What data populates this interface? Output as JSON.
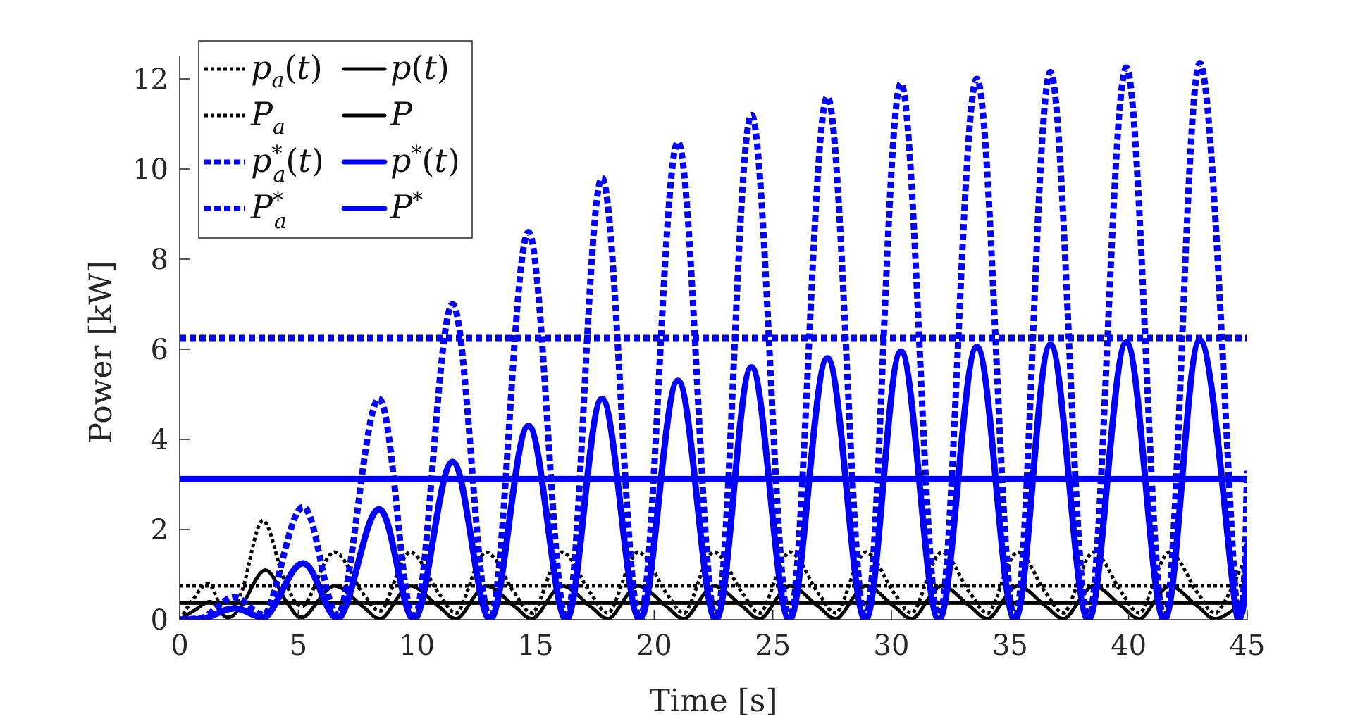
{
  "chart_data": {
    "type": "line",
    "title": "",
    "xlabel": "Time [s]",
    "ylabel": "Power [kW]",
    "xlim": [
      0,
      45
    ],
    "ylim": [
      0,
      12.5
    ],
    "xticks": [
      0,
      5,
      10,
      15,
      20,
      25,
      30,
      35,
      40,
      45
    ],
    "yticks": [
      0,
      2,
      4,
      6,
      8,
      10,
      12
    ],
    "grid": false,
    "legend_position": "top-left",
    "colors": {
      "black": "#000000",
      "blue": "#0000ff"
    },
    "legend": [
      {
        "id": "pa_t",
        "label": "pa(t)",
        "style": "dotted",
        "color": "#000000"
      },
      {
        "id": "p_t",
        "label": "p(t)",
        "style": "solid",
        "color": "#000000"
      },
      {
        "id": "Pa",
        "label": "Pa",
        "style": "dotted",
        "color": "#000000"
      },
      {
        "id": "P",
        "label": "P",
        "style": "solid",
        "color": "#000000"
      },
      {
        "id": "pa_star_t",
        "label": "pa*(t)",
        "style": "dotted",
        "color": "#0000ff"
      },
      {
        "id": "p_star_t",
        "label": "p*(t)",
        "style": "solid",
        "color": "#0000ff"
      },
      {
        "id": "Pa_star",
        "label": "Pa*",
        "style": "dotted",
        "color": "#0000ff"
      },
      {
        "id": "P_star",
        "label": "P*",
        "style": "solid",
        "color": "#0000ff"
      }
    ],
    "series": [
      {
        "id": "Pa_star",
        "style": "dotted",
        "color": "#0000ff",
        "kind": "constant",
        "value": 6.25
      },
      {
        "id": "P_star",
        "style": "solid",
        "color": "#0000ff",
        "kind": "constant",
        "value": 3.12
      },
      {
        "id": "Pa",
        "style": "dotted",
        "color": "#000000",
        "kind": "constant",
        "value": 0.75
      },
      {
        "id": "P",
        "style": "solid",
        "color": "#000000",
        "kind": "constant",
        "value": 0.37
      },
      {
        "id": "pa_t",
        "style": "dotted",
        "color": "#000000",
        "x": [
          0,
          0.5,
          1.2,
          1.9,
          2.6,
          3.5,
          4.4,
          5.2,
          6.5,
          7.7,
          8.5,
          9.7,
          10.9,
          11.7,
          12.9,
          14.1,
          14.9,
          16.1,
          17.3,
          18.1,
          19.3,
          20.5,
          21.3,
          22.5,
          23.7,
          24.5,
          25.7,
          26.9,
          27.7,
          28.9,
          30.1,
          30.9,
          32.1,
          33.3,
          34.1,
          35.3,
          36.5,
          37.3,
          38.5,
          39.7,
          40.5,
          41.7,
          42.9,
          43.7,
          45
        ],
        "y": [
          0,
          0.4,
          0.8,
          0.2,
          0.6,
          2.2,
          0.9,
          0.3,
          1.5,
          0.6,
          0.2,
          1.5,
          0.6,
          0.15,
          1.5,
          0.6,
          0.15,
          1.5,
          0.6,
          0.15,
          1.5,
          0.6,
          0.15,
          1.5,
          0.6,
          0.15,
          1.5,
          0.6,
          0.15,
          1.5,
          0.6,
          0.15,
          1.5,
          0.6,
          0.15,
          1.5,
          0.6,
          0.15,
          1.5,
          0.6,
          0.15,
          1.5,
          0.6,
          0.15,
          1.45
        ]
      },
      {
        "id": "p_t",
        "style": "solid",
        "color": "#000000",
        "x": [
          0,
          0.6,
          1.3,
          2.0,
          2.6,
          3.6,
          4.5,
          5.2,
          6.5,
          7.7,
          8.5,
          9.7,
          10.9,
          11.7,
          12.9,
          14.1,
          14.9,
          16.1,
          17.3,
          18.1,
          19.3,
          20.5,
          21.3,
          22.5,
          23.7,
          24.5,
          25.7,
          26.9,
          27.7,
          28.9,
          30.1,
          30.9,
          32.1,
          33.3,
          34.1,
          35.3,
          36.5,
          37.3,
          38.5,
          39.7,
          40.5,
          41.7,
          42.9,
          43.7,
          45
        ],
        "y": [
          0,
          0.2,
          0.4,
          0.05,
          0.3,
          1.1,
          0.4,
          0.05,
          0.75,
          0.3,
          0.02,
          0.75,
          0.3,
          0.02,
          0.75,
          0.3,
          0.02,
          0.75,
          0.3,
          0.02,
          0.75,
          0.3,
          0.02,
          0.75,
          0.3,
          0.02,
          0.75,
          0.3,
          0.02,
          0.75,
          0.3,
          0.02,
          0.75,
          0.3,
          0.02,
          0.75,
          0.3,
          0.02,
          0.75,
          0.3,
          0.02,
          0.75,
          0.3,
          0.02,
          0.45
        ]
      },
      {
        "id": "pa_star_t",
        "style": "dotted",
        "color": "#0000ff",
        "x": [
          0,
          1.0,
          2.3,
          3.6,
          5.2,
          6.7,
          8.4,
          9.9,
          11.5,
          13.1,
          14.7,
          16.3,
          17.8,
          19.4,
          21.0,
          22.6,
          24.1,
          25.7,
          27.3,
          28.9,
          30.4,
          32.0,
          33.6,
          35.2,
          36.7,
          38.3,
          39.9,
          41.5,
          43.0,
          44.6,
          45
        ],
        "y": [
          0,
          0.05,
          0.5,
          0.1,
          2.5,
          0.1,
          4.9,
          0,
          7.0,
          0,
          8.6,
          0,
          9.8,
          0,
          10.6,
          0,
          11.2,
          0,
          11.6,
          0,
          11.9,
          0,
          12.0,
          0,
          12.15,
          0,
          12.25,
          0,
          12.35,
          0,
          3.3
        ]
      },
      {
        "id": "p_star_t",
        "style": "solid",
        "color": "#0000ff",
        "x": [
          0,
          1.0,
          2.3,
          3.6,
          5.2,
          6.7,
          8.4,
          9.9,
          11.5,
          13.1,
          14.7,
          16.3,
          17.8,
          19.4,
          21.0,
          22.6,
          24.1,
          25.7,
          27.3,
          28.9,
          30.4,
          32.0,
          33.6,
          35.2,
          36.7,
          38.3,
          39.9,
          41.5,
          43.0,
          44.6,
          45
        ],
        "y": [
          0,
          0.02,
          0.25,
          0.05,
          1.25,
          0.02,
          2.45,
          0,
          3.5,
          0,
          4.3,
          0,
          4.9,
          0,
          5.3,
          0,
          5.6,
          0,
          5.8,
          0,
          5.95,
          0,
          6.05,
          0,
          6.1,
          0,
          6.15,
          0,
          6.2,
          0,
          1.65
        ]
      }
    ]
  }
}
